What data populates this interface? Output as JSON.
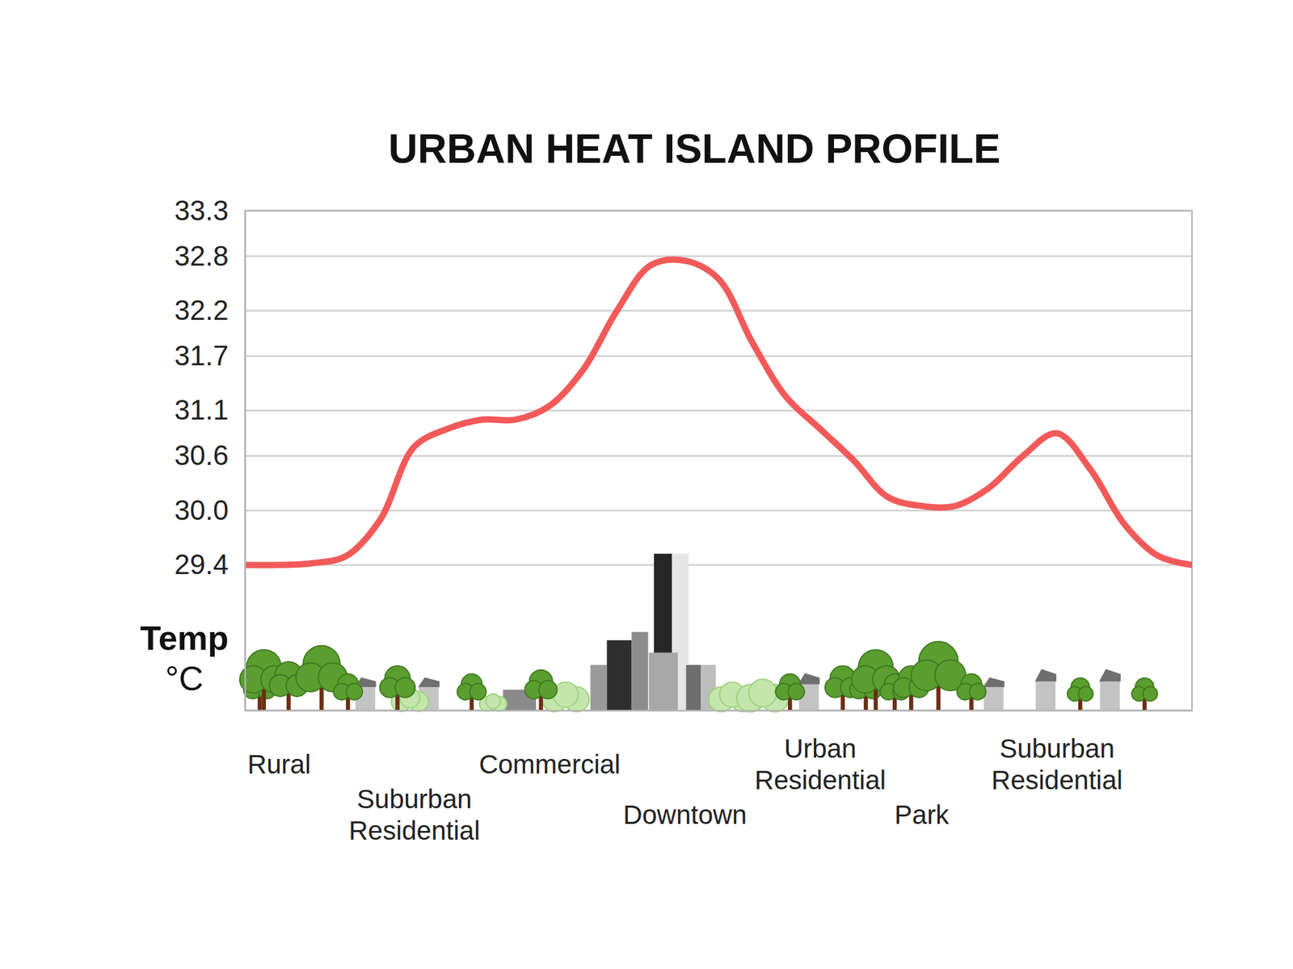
{
  "chart_data": {
    "type": "line",
    "title": "URBAN HEAT ISLAND PROFILE",
    "y_label": "Temp °C",
    "categories": [
      null,
      "Rural",
      null,
      null,
      null,
      "Suburban Residential",
      null,
      null,
      null,
      "Commercial",
      null,
      null,
      null,
      "Downtown",
      null,
      null,
      null,
      "Urban Residential",
      null,
      null,
      "Park",
      null,
      null,
      null,
      "Suburban Residential",
      null,
      null,
      null,
      null
    ],
    "values": [
      29.4,
      29.4,
      29.42,
      29.5,
      29.9,
      30.7,
      30.9,
      31.0,
      31.0,
      31.15,
      31.55,
      32.2,
      32.7,
      32.75,
      32.55,
      31.85,
      31.25,
      30.9,
      30.55,
      30.15,
      30.05,
      30.05,
      30.25,
      30.6,
      30.85,
      30.45,
      29.85,
      29.5,
      29.4
    ],
    "color": "#f25a5a",
    "ylim": [
      27.8,
      33.3
    ],
    "yticks": [
      29.4,
      {
        "value": 30,
        "label": "30.0"
      },
      30.6,
      31.1,
      31.7,
      32.2,
      32.8,
      33.3
    ],
    "grid": true
  }
}
